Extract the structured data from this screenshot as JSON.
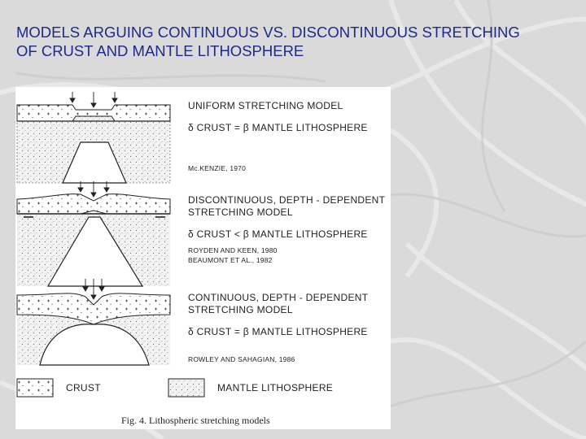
{
  "slide": {
    "title_line1": "MODELS ARGUING CONTINUOUS VS. DISCONTINUOUS STRETCHING",
    "title_line2": "OF CRUST AND MANTLE LITHOSPHERE"
  },
  "figure": {
    "models": [
      {
        "name_line1": "UNIFORM STRETCHING MODEL",
        "name_line2": "",
        "relation": "δ  CRUST =  β  MANTLE LITHOSPHERE",
        "ref1": "Mc.KENZIE, 1970",
        "ref2": ""
      },
      {
        "name_line1": "DISCONTINUOUS, DEPTH - DEPENDENT",
        "name_line2": "STRETCHING MODEL",
        "relation": "δ  CRUST <  β  MANTLE LITHOSPHERE",
        "ref1": "ROYDEN AND KEEN, 1980",
        "ref2": "BEAUMONT ET AL., 1982"
      },
      {
        "name_line1": "CONTINUOUS, DEPTH - DEPENDENT",
        "name_line2": "STRETCHING MODEL",
        "relation": "δ  CRUST =  β  MANTLE LITHOSPHERE",
        "ref1": "ROWLEY AND SAHAGIAN, 1986",
        "ref2": ""
      }
    ],
    "legend": {
      "crust": "CRUST",
      "mantle": "MANTLE LITHOSPHERE"
    },
    "caption": "Fig. 4. Lithospheric stretching models"
  }
}
